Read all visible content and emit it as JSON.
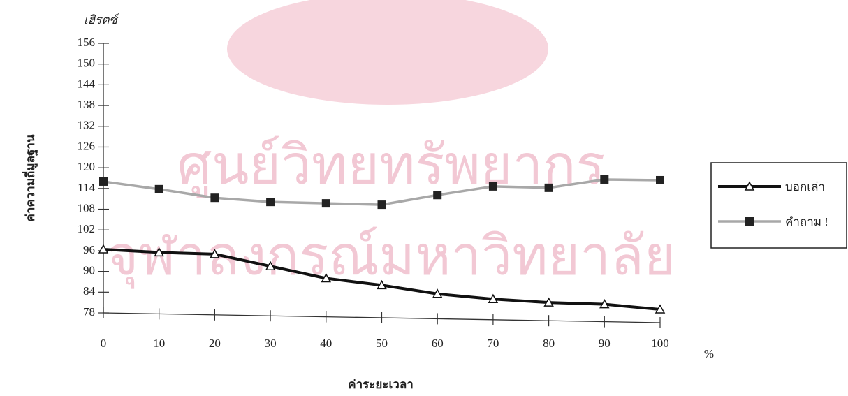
{
  "chart_data": {
    "type": "line",
    "watermark": [
      "ศูนย์วิทยทรัพยากร",
      "จุฬาลงกรณ์มหาวิทยาลัย"
    ],
    "y_unit": "เฮิรตซ์",
    "ylabel": "ค่าความถี่มูลฐาน",
    "xlabel": "ค่าระยะเวลา",
    "x_unit": "%",
    "x": [
      0,
      10,
      20,
      30,
      40,
      50,
      60,
      70,
      80,
      90,
      100
    ],
    "xlim": [
      0,
      100
    ],
    "xticks": [
      0,
      10,
      20,
      30,
      40,
      50,
      60,
      70,
      80,
      90,
      100
    ],
    "ylim": [
      78,
      156
    ],
    "yticks": [
      78,
      84,
      90,
      96,
      102,
      108,
      114,
      120,
      126,
      132,
      138,
      144,
      150,
      156
    ],
    "legend": "right",
    "series": [
      {
        "name": "บอกเล่า",
        "color": "#111111",
        "marker": "triangle",
        "values": [
          96.4,
          95.5,
          95,
          91.5,
          88,
          86,
          83.5,
          82,
          81,
          80.5,
          79
        ]
      },
      {
        "name": "คำถาม !",
        "color": "#a8a8a8",
        "marker": "square",
        "values": [
          116,
          113.8,
          111.3,
          110.1,
          109.7,
          109.3,
          112.1,
          114.6,
          114.2,
          116.6,
          116.4
        ]
      }
    ]
  }
}
